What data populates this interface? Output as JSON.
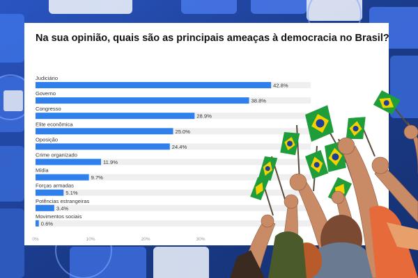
{
  "colors": {
    "bar": "#2f80ed",
    "track": "#efefef",
    "background": "#1d3f8f",
    "card": "#ffffff",
    "flag_green": "#1f9d3a",
    "flag_yellow": "#f5d000",
    "flag_blue": "#1a3f9a"
  },
  "chart_data": {
    "type": "bar",
    "orientation": "horizontal",
    "title": "Na sua opinião, quais são as principais ameaças à democracia no Brasil?",
    "categories": [
      "Judiciário",
      "Governo",
      "Congresso",
      "Elite econômica",
      "Oposição",
      "Crime organizado",
      "Mídia",
      "Forças armadas",
      "Potências estrangeiras",
      "Movimentos sociais"
    ],
    "values": [
      42.8,
      38.8,
      28.9,
      25.0,
      24.4,
      11.9,
      9.7,
      5.1,
      3.4,
      0.6
    ],
    "value_labels": [
      "42.8%",
      "38.8%",
      "28.9%",
      "25.0%",
      "24.4%",
      "11.9%",
      "9.7%",
      "5.1%",
      "3.4%",
      "0.6%"
    ],
    "xlim": [
      0,
      50
    ],
    "ticks": [
      0,
      10,
      20,
      30
    ],
    "tick_labels": [
      "0%",
      "10%",
      "20%",
      "30%"
    ],
    "grid": false,
    "legend": "none"
  }
}
